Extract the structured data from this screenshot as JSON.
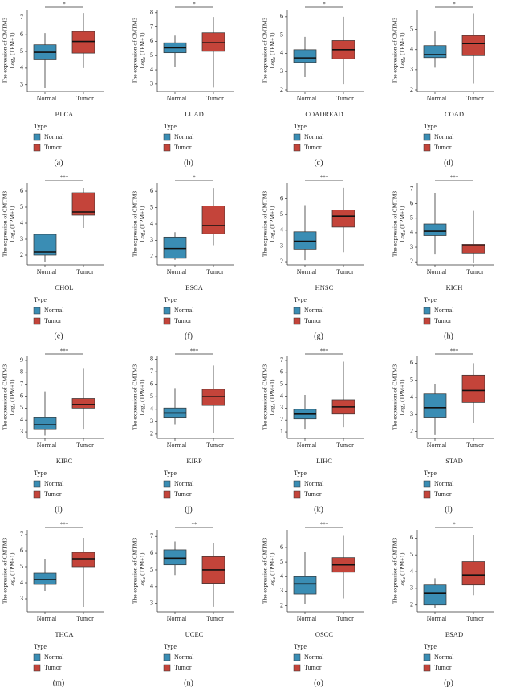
{
  "chart_data": [
    {
      "type": "box",
      "title": "BLCA",
      "panel": "(a)",
      "y_label": [
        "The expression of CMTM3",
        "Log₂ (TPM+1)"
      ],
      "categories": [
        "Normal",
        "Tumor"
      ],
      "legend_title": "Type",
      "colors": [
        "#3a8db4",
        "#c4443a"
      ],
      "stats": [
        [
          2.8,
          4.5,
          4.95,
          5.4,
          6.1
        ],
        [
          4.0,
          4.9,
          5.6,
          6.2,
          7.3
        ]
      ],
      "significance": "*",
      "ylim": [
        2.7,
        7.4
      ],
      "yticks": [
        3,
        4,
        5,
        6,
        7
      ]
    },
    {
      "type": "box",
      "title": "LUAD",
      "panel": "(b)",
      "y_label": [
        "The expression of CMTM3",
        "Log₂ (TPM+1)"
      ],
      "categories": [
        "Normal",
        "Tumor"
      ],
      "legend_title": "Type",
      "colors": [
        "#3a8db4",
        "#c4443a"
      ],
      "stats": [
        [
          4.2,
          5.2,
          5.55,
          5.9,
          6.4
        ],
        [
          2.8,
          5.3,
          5.9,
          6.6,
          7.7
        ]
      ],
      "significance": "*",
      "ylim": [
        2.6,
        8.1
      ],
      "yticks": [
        3,
        4,
        5,
        6,
        7,
        8
      ]
    },
    {
      "type": "box",
      "title": "COADREAD",
      "panel": "(c)",
      "y_label": [
        "The expression of CMTM3",
        "Log₂ (TPM+1)"
      ],
      "categories": [
        "Normal",
        "Tumor"
      ],
      "legend_title": "Type",
      "colors": [
        "#3a8db4",
        "#c4443a"
      ],
      "stats": [
        [
          2.7,
          3.5,
          3.75,
          4.2,
          4.9
        ],
        [
          2.3,
          3.7,
          4.2,
          4.7,
          6.0
        ]
      ],
      "significance": "*",
      "ylim": [
        2,
        6.3
      ],
      "yticks": [
        2,
        3,
        4,
        5,
        6
      ]
    },
    {
      "type": "box",
      "title": "COAD",
      "panel": "(d)",
      "y_label": [
        "The expression of CMTM3",
        "Log₂ (TPM+1)"
      ],
      "categories": [
        "Normal",
        "Tumor"
      ],
      "legend_title": "Type",
      "colors": [
        "#3a8db4",
        "#c4443a"
      ],
      "stats": [
        [
          3.1,
          3.6,
          3.75,
          4.2,
          4.9
        ],
        [
          2.3,
          3.7,
          4.3,
          4.7,
          5.8
        ]
      ],
      "significance": "*",
      "ylim": [
        2,
        5.9
      ],
      "yticks": [
        2,
        3,
        4,
        5
      ]
    },
    {
      "type": "box",
      "title": "CHOL",
      "panel": "(e)",
      "y_label": [
        "The expression of CMTM3",
        "Log₂ (TPM+1)"
      ],
      "categories": [
        "Normal",
        "Tumor"
      ],
      "legend_title": "Type",
      "colors": [
        "#3a8db4",
        "#c4443a"
      ],
      "stats": [
        [
          1.6,
          2.0,
          2.2,
          3.3,
          3.3
        ],
        [
          3.7,
          4.5,
          4.7,
          5.9,
          6.2
        ]
      ],
      "significance": "***",
      "ylim": [
        1.5,
        6.4
      ],
      "yticks": [
        2,
        3,
        4,
        5,
        6
      ]
    },
    {
      "type": "box",
      "title": "ESCA",
      "panel": "(f)",
      "y_label": [
        "The expression of CMTM3",
        "Log₂ (TPM+1)"
      ],
      "categories": [
        "Normal",
        "Tumor"
      ],
      "legend_title": "Type",
      "colors": [
        "#3a8db4",
        "#c4443a"
      ],
      "stats": [
        [
          1.8,
          1.9,
          2.5,
          3.2,
          3.5
        ],
        [
          2.7,
          3.4,
          3.9,
          5.1,
          6.2
        ]
      ],
      "significance": "*",
      "ylim": [
        1.6,
        6.4
      ],
      "yticks": [
        2,
        3,
        4,
        5,
        6
      ]
    },
    {
      "type": "box",
      "title": "HNSC",
      "panel": "(g)",
      "y_label": [
        "The expression of CMTM3",
        "Log₂ (TPM+1)"
      ],
      "categories": [
        "Normal",
        "Tumor"
      ],
      "legend_title": "Type",
      "colors": [
        "#3a8db4",
        "#c4443a"
      ],
      "stats": [
        [
          2.1,
          2.8,
          3.3,
          3.9,
          5.6
        ],
        [
          2.6,
          4.2,
          4.9,
          5.3,
          6.7
        ]
      ],
      "significance": "***",
      "ylim": [
        1.9,
        6.9
      ],
      "yticks": [
        2,
        3,
        4,
        5,
        6
      ]
    },
    {
      "type": "box",
      "title": "KICH",
      "panel": "(h)",
      "y_label": [
        "The expression of CMTM3",
        "Log₂ (TPM+1)"
      ],
      "categories": [
        "Normal",
        "Tumor"
      ],
      "legend_title": "Type",
      "colors": [
        "#3a8db4",
        "#c4443a"
      ],
      "stats": [
        [
          2.5,
          3.8,
          4.1,
          4.6,
          6.7
        ],
        [
          1.9,
          2.6,
          3.1,
          3.2,
          5.5
        ]
      ],
      "significance": "***",
      "ylim": [
        1.9,
        7.3
      ],
      "yticks": [
        2,
        3,
        4,
        5,
        6,
        7
      ]
    },
    {
      "type": "box",
      "title": "KIRC",
      "panel": "(i)",
      "y_label": [
        "The expression of CMTM3",
        "Log₂ (TPM+1)"
      ],
      "categories": [
        "Normal",
        "Tumor"
      ],
      "legend_title": "Type",
      "colors": [
        "#3a8db4",
        "#c4443a"
      ],
      "stats": [
        [
          2.7,
          3.2,
          3.6,
          4.2,
          6.4
        ],
        [
          3.2,
          5.0,
          5.3,
          5.8,
          8.3
        ]
      ],
      "significance": "***",
      "ylim": [
        2.6,
        9.2
      ],
      "yticks": [
        3,
        4,
        5,
        6,
        7,
        8,
        9
      ]
    },
    {
      "type": "box",
      "title": "KIRP",
      "panel": "(j)",
      "y_label": [
        "The expression of CMTM3",
        "Log₂ (TPM+1)"
      ],
      "categories": [
        "Normal",
        "Tumor"
      ],
      "legend_title": "Type",
      "colors": [
        "#3a8db4",
        "#c4443a"
      ],
      "stats": [
        [
          2.8,
          3.3,
          3.7,
          4.1,
          5.7
        ],
        [
          2.1,
          4.3,
          5.0,
          5.6,
          7.5
        ]
      ],
      "significance": "***",
      "ylim": [
        1.8,
        8.1
      ],
      "yticks": [
        2,
        3,
        4,
        5,
        6,
        7,
        8
      ]
    },
    {
      "type": "box",
      "title": "LIHC",
      "panel": "(k)",
      "y_label": [
        "The expression of CMTM3",
        "Log₂ (TPM+1)"
      ],
      "categories": [
        "Normal",
        "Tumor"
      ],
      "legend_title": "Type",
      "colors": [
        "#3a8db4",
        "#c4443a"
      ],
      "stats": [
        [
          1.2,
          2.1,
          2.5,
          2.9,
          4.1
        ],
        [
          1.4,
          2.5,
          3.1,
          3.7,
          6.9
        ]
      ],
      "significance": "***",
      "ylim": [
        0.6,
        7.2
      ],
      "yticks": [
        1,
        2,
        3,
        4,
        5,
        6,
        7
      ]
    },
    {
      "type": "box",
      "title": "STAD",
      "panel": "(l)",
      "y_label": [
        "The expression of CMTM3",
        "Log₂ (TPM+1)"
      ],
      "categories": [
        "Normal",
        "Tumor"
      ],
      "legend_title": "Type",
      "colors": [
        "#3a8db4",
        "#c4443a"
      ],
      "stats": [
        [
          1.8,
          2.8,
          3.4,
          4.2,
          4.8
        ],
        [
          2.5,
          3.7,
          4.4,
          5.3,
          6.0
        ]
      ],
      "significance": "***",
      "ylim": [
        1.7,
        6.3
      ],
      "yticks": [
        2,
        3,
        4,
        5,
        6
      ]
    },
    {
      "type": "box",
      "title": "THCA",
      "panel": "(m)",
      "y_label": [
        "The expression of CMTM3",
        "Log₂ (TPM+1)"
      ],
      "categories": [
        "Normal",
        "Tumor"
      ],
      "legend_title": "Type",
      "colors": [
        "#3a8db4",
        "#c4443a"
      ],
      "stats": [
        [
          3.5,
          3.9,
          4.2,
          4.6,
          5.5
        ],
        [
          2.5,
          5.0,
          5.5,
          5.9,
          6.8
        ]
      ],
      "significance": "***",
      "ylim": [
        2.3,
        7.2
      ],
      "yticks": [
        3,
        4,
        5,
        6,
        7
      ]
    },
    {
      "type": "box",
      "title": "UCEC",
      "panel": "(n)",
      "y_label": [
        "The expression of CMTM3",
        "Log₂ (TPM+1)"
      ],
      "categories": [
        "Normal",
        "Tumor"
      ],
      "legend_title": "Type",
      "colors": [
        "#3a8db4",
        "#c4443a"
      ],
      "stats": [
        [
          4.7,
          5.3,
          5.7,
          6.2,
          6.7
        ],
        [
          2.8,
          4.2,
          5.0,
          5.8,
          6.6
        ]
      ],
      "significance": "**",
      "ylim": [
        2.6,
        7.3
      ],
      "yticks": [
        3,
        4,
        5,
        6,
        7
      ]
    },
    {
      "type": "box",
      "title": "OSCC",
      "panel": "(o)",
      "y_label": [
        "The expression of CMTM3",
        "Log₂ (TPM+1)"
      ],
      "categories": [
        "Normal",
        "Tumor"
      ],
      "legend_title": "Type",
      "colors": [
        "#3a8db4",
        "#c4443a"
      ],
      "stats": [
        [
          2.1,
          2.8,
          3.5,
          4.0,
          5.7
        ],
        [
          2.5,
          4.3,
          4.8,
          5.3,
          6.8
        ]
      ],
      "significance": "***",
      "ylim": [
        1.7,
        7.1
      ],
      "yticks": [
        2,
        3,
        4,
        5,
        6
      ]
    },
    {
      "type": "box",
      "title": "ESAD",
      "panel": "(p)",
      "y_label": [
        "The expression of CMTM3",
        "Log₂ (TPM+1)"
      ],
      "categories": [
        "Normal",
        "Tumor"
      ],
      "legend_title": "Type",
      "colors": [
        "#3a8db4",
        "#c4443a"
      ],
      "stats": [
        [
          1.8,
          2.0,
          2.7,
          3.2,
          3.6
        ],
        [
          2.6,
          3.2,
          3.8,
          4.6,
          6.2
        ]
      ],
      "significance": "*",
      "ylim": [
        1.7,
        6.4
      ],
      "yticks": [
        2,
        3,
        4,
        5,
        6
      ]
    }
  ]
}
